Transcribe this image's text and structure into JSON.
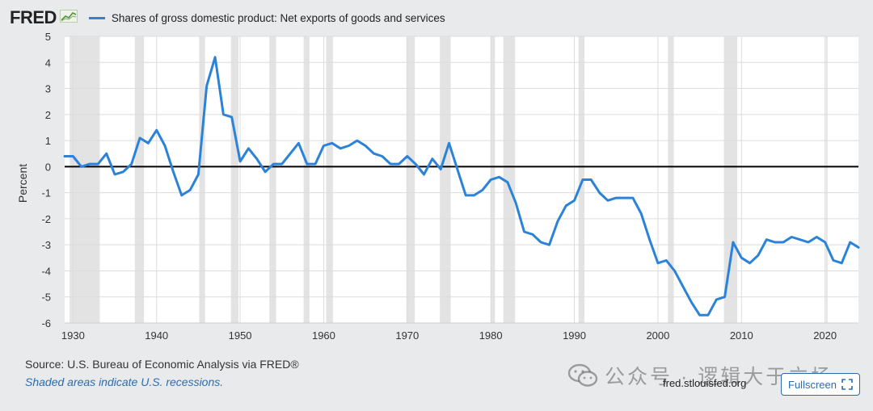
{
  "header": {
    "logo_text": "FRED",
    "legend_label": "Shares of gross domestic product: Net exports of goods and services",
    "series_color": "#2b82d9"
  },
  "chart_data": {
    "type": "line",
    "title": "",
    "ylabel": "Percent",
    "xlabel": "",
    "xlim": [
      1929,
      2024
    ],
    "ylim": [
      -6,
      5
    ],
    "yticks": [
      5,
      4,
      3,
      2,
      1,
      0,
      -1,
      -2,
      -3,
      -4,
      -5,
      -6
    ],
    "xticks": [
      1930,
      1940,
      1950,
      1960,
      1970,
      1980,
      1990,
      2000,
      2010,
      2020
    ],
    "grid": true,
    "zero_line": true,
    "recessions": [
      [
        1929.6,
        1933.2
      ],
      [
        1937.4,
        1938.5
      ],
      [
        1945.1,
        1945.8
      ],
      [
        1948.9,
        1949.8
      ],
      [
        1953.5,
        1954.3
      ],
      [
        1957.6,
        1958.3
      ],
      [
        1960.3,
        1961.1
      ],
      [
        1969.9,
        1970.9
      ],
      [
        1973.9,
        1975.2
      ],
      [
        1980.0,
        1980.5
      ],
      [
        1981.5,
        1982.9
      ],
      [
        1990.5,
        1991.2
      ],
      [
        2001.2,
        2001.9
      ],
      [
        2007.9,
        2009.5
      ],
      [
        2020.1,
        2020.3
      ]
    ],
    "series": [
      {
        "name": "Shares of gross domestic product: Net exports of goods and services",
        "color": "#2b82d9",
        "x": [
          1929,
          1930,
          1931,
          1932,
          1933,
          1934,
          1935,
          1936,
          1937,
          1938,
          1939,
          1940,
          1941,
          1942,
          1943,
          1944,
          1945,
          1946,
          1947,
          1948,
          1949,
          1950,
          1951,
          1952,
          1953,
          1954,
          1955,
          1956,
          1957,
          1958,
          1959,
          1960,
          1961,
          1962,
          1963,
          1964,
          1965,
          1966,
          1967,
          1968,
          1969,
          1970,
          1971,
          1972,
          1973,
          1974,
          1975,
          1976,
          1977,
          1978,
          1979,
          1980,
          1981,
          1982,
          1983,
          1984,
          1985,
          1986,
          1987,
          1988,
          1989,
          1990,
          1991,
          1992,
          1993,
          1994,
          1995,
          1996,
          1997,
          1998,
          1999,
          2000,
          2001,
          2002,
          2003,
          2004,
          2005,
          2006,
          2007,
          2008,
          2009,
          2010,
          2011,
          2012,
          2013,
          2014,
          2015,
          2016,
          2017,
          2018,
          2019,
          2020,
          2021,
          2022,
          2023,
          2024
        ],
        "y": [
          0.4,
          0.4,
          0.0,
          0.1,
          0.1,
          0.5,
          -0.3,
          -0.2,
          0.1,
          1.1,
          0.9,
          1.4,
          0.8,
          -0.2,
          -1.1,
          -0.9,
          -0.3,
          3.1,
          4.2,
          2.0,
          1.9,
          0.2,
          0.7,
          0.3,
          -0.2,
          0.1,
          0.1,
          0.5,
          0.9,
          0.1,
          0.1,
          0.8,
          0.9,
          0.7,
          0.8,
          1.0,
          0.8,
          0.5,
          0.4,
          0.1,
          0.1,
          0.4,
          0.1,
          -0.3,
          0.3,
          -0.1,
          0.9,
          -0.1,
          -1.1,
          -1.1,
          -0.9,
          -0.5,
          -0.4,
          -0.6,
          -1.4,
          -2.5,
          -2.6,
          -2.9,
          -3.0,
          -2.1,
          -1.5,
          -1.3,
          -0.5,
          -0.5,
          -1.0,
          -1.3,
          -1.2,
          -1.2,
          -1.2,
          -1.8,
          -2.8,
          -3.7,
          -3.6,
          -4.0,
          -4.6,
          -5.2,
          -5.7,
          -5.7,
          -5.1,
          -5.0,
          -2.9,
          -3.5,
          -3.7,
          -3.4,
          -2.8,
          -2.9,
          -2.9,
          -2.7,
          -2.8,
          -2.9,
          -2.7,
          -2.9,
          -3.6,
          -3.7,
          -2.9,
          -3.1
        ]
      }
    ]
  },
  "footer": {
    "source": "Source: U.S. Bureau of Economic Analysis via FRED®",
    "shaded_note": "Shaded areas indicate U.S. recessions.",
    "site": "fred.stlouisfed.org",
    "fullscreen_label": "Fullscreen",
    "watermark": "公众号 · 逻辑大于立场"
  },
  "colors": {
    "background": "#e9eaec",
    "plot_background": "#ffffff",
    "recession": "#e3e3e3",
    "zero_line": "#000000",
    "link": "#2b6cb0"
  },
  "icons": [
    "logo-chart-icon",
    "fullscreen-icon",
    "wechat-icon"
  ]
}
